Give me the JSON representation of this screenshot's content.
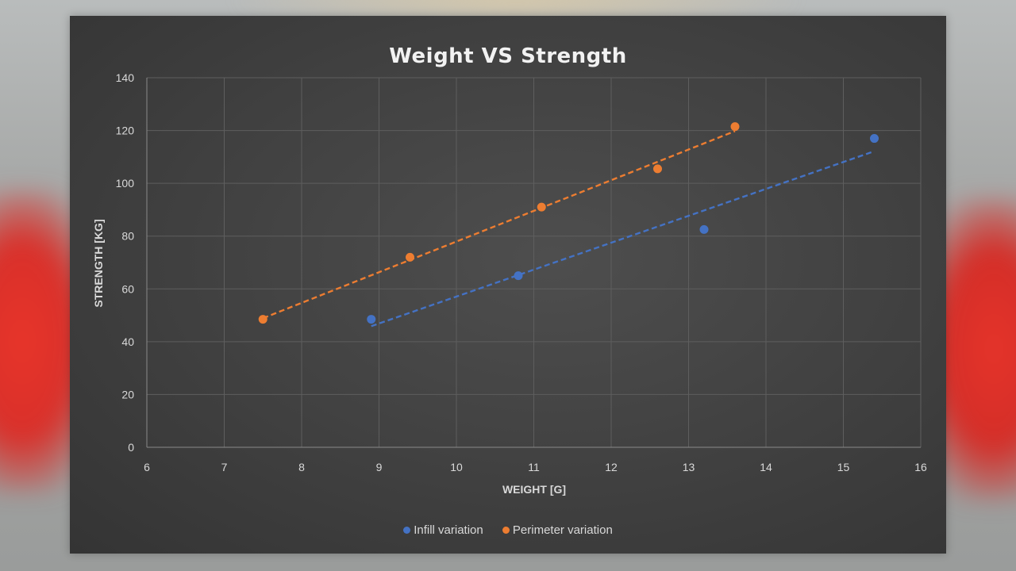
{
  "chart_data": {
    "type": "scatter",
    "title": "Weight VS Strength",
    "xlabel": "WEIGHT [G]",
    "ylabel": "STRENGTH [KG]",
    "xlim": [
      6,
      16
    ],
    "ylim": [
      0,
      140
    ],
    "xticks": [
      "6",
      "7",
      "8",
      "9",
      "10",
      "11",
      "12",
      "13",
      "14",
      "15",
      "16"
    ],
    "yticks": [
      "0",
      "20",
      "40",
      "60",
      "80",
      "100",
      "120",
      "140"
    ],
    "grid": true,
    "legend_position": "bottom",
    "trendlines": "linear, dashed",
    "series": [
      {
        "name": "Infill variation",
        "color": "#4472c4",
        "points": [
          {
            "x": 8.9,
            "y": 48.5
          },
          {
            "x": 10.8,
            "y": 65
          },
          {
            "x": 13.2,
            "y": 82.5
          },
          {
            "x": 15.4,
            "y": 117
          }
        ]
      },
      {
        "name": "Perimeter variation",
        "color": "#ed7d31",
        "points": [
          {
            "x": 7.5,
            "y": 48.5
          },
          {
            "x": 9.4,
            "y": 72
          },
          {
            "x": 11.1,
            "y": 91
          },
          {
            "x": 12.6,
            "y": 105.5
          },
          {
            "x": 13.6,
            "y": 121.5
          }
        ]
      }
    ]
  }
}
